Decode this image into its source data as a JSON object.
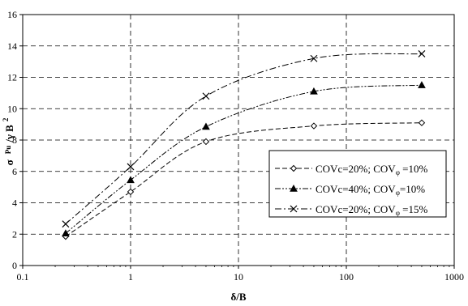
{
  "chart_data": {
    "type": "line",
    "x_scale": "log",
    "xlim": [
      0.1,
      1000
    ],
    "ylim": [
      0,
      16
    ],
    "x_ticks": [
      0.1,
      1,
      10,
      100,
      1000
    ],
    "x_tick_labels": [
      "0.1",
      "1",
      "10",
      "100",
      "1000"
    ],
    "y_ticks": [
      0,
      2,
      4,
      6,
      8,
      10,
      12,
      14,
      16
    ],
    "y_tick_labels": [
      "0",
      "2",
      "4",
      "6",
      "8",
      "10",
      "12",
      "14",
      "16"
    ],
    "xlabel": "δ/B",
    "ylabel": {
      "sigma": "σ",
      "sub": "Pu",
      "over": "/γ B",
      "sup": "2"
    },
    "grid": true,
    "legend_position": "right",
    "series": [
      {
        "label": {
          "main": "COVc=20%; COV",
          "sym": "φ",
          "tail": " =10%"
        },
        "marker": "diamond-open",
        "dash": "dashed",
        "color": "#000000",
        "x": [
          0.25,
          1,
          5,
          50,
          500
        ],
        "y": [
          1.85,
          4.7,
          7.9,
          8.9,
          9.1
        ]
      },
      {
        "label": {
          "main": "COVc=40%; COV",
          "sym": "φ",
          "tail": "=10%"
        },
        "marker": "triangle-filled",
        "dash": "dash-dot-dot",
        "color": "#000000",
        "x": [
          0.25,
          1,
          5,
          50,
          500
        ],
        "y": [
          2.05,
          5.45,
          8.85,
          11.1,
          11.5
        ]
      },
      {
        "label": {
          "main": "COVc=20%; COV",
          "sym": "φ",
          "tail": " =15%"
        },
        "marker": "x",
        "dash": "dash-dot",
        "color": "#000000",
        "x": [
          0.25,
          1,
          5,
          50,
          500
        ],
        "y": [
          2.65,
          6.3,
          10.8,
          13.2,
          13.5
        ]
      }
    ]
  }
}
